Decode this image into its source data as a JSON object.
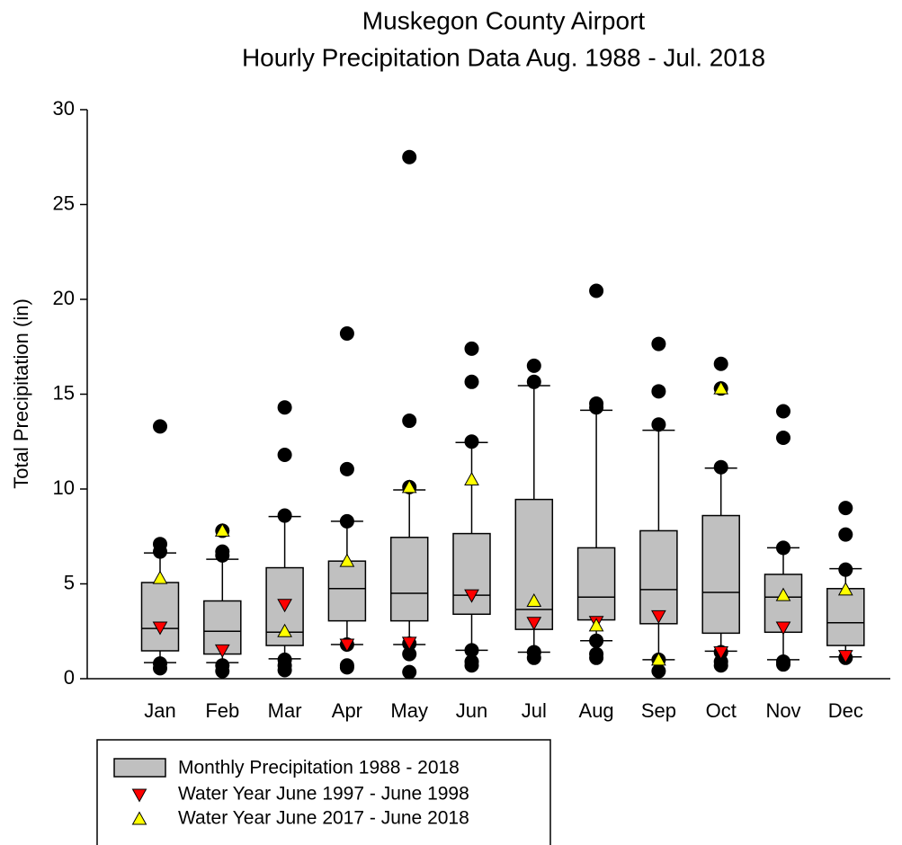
{
  "chart_data": {
    "type": "box",
    "title": "Muskegon County Airport",
    "subtitle": "Hourly Precipitation Data Aug. 1988 - Jul. 2018",
    "y_label": "Total Precipitation (in)",
    "categories": [
      "Jan",
      "Feb",
      "Mar",
      "Apr",
      "May",
      "Jun",
      "Jul",
      "Aug",
      "Sep",
      "Oct",
      "Nov",
      "Dec"
    ],
    "ylim": [
      0,
      30
    ],
    "yticks": [
      0,
      5,
      10,
      15,
      20,
      25,
      30
    ],
    "box_series": {
      "name": "Monthly Precipitation 1988 - 2018",
      "color": "#c0c0c0",
      "low": [
        0.85,
        0.85,
        1.05,
        1.8,
        1.8,
        1.5,
        1.4,
        2.0,
        1.0,
        1.45,
        1.0,
        1.15
      ],
      "q1": [
        1.47,
        1.3,
        1.75,
        3.05,
        3.05,
        3.4,
        2.6,
        3.1,
        2.9,
        2.4,
        2.45,
        1.75
      ],
      "median": [
        2.65,
        2.5,
        2.45,
        4.75,
        4.5,
        4.4,
        3.65,
        4.3,
        4.7,
        4.55,
        4.3,
        2.95
      ],
      "q3": [
        5.07,
        4.1,
        5.85,
        6.2,
        7.45,
        7.65,
        9.45,
        6.9,
        7.8,
        8.6,
        5.5,
        4.75
      ],
      "high": [
        6.63,
        6.3,
        8.55,
        8.3,
        9.95,
        12.45,
        15.45,
        14.15,
        13.1,
        11.1,
        6.9,
        5.8
      ],
      "outliers": [
        [
          13.3,
          7.1,
          6.7,
          0.8,
          0.55
        ],
        [
          7.8,
          6.7,
          6.5,
          0.7,
          0.4
        ],
        [
          14.3,
          11.8,
          8.6,
          1.0,
          0.7,
          0.45
        ],
        [
          18.2,
          11.05,
          8.3,
          1.8,
          0.7,
          0.6
        ],
        [
          27.5,
          13.6,
          10.1,
          1.85,
          1.3,
          0.35
        ],
        [
          17.4,
          15.65,
          12.5,
          1.5,
          0.9,
          0.7
        ],
        [
          16.5,
          15.65,
          1.4,
          1.1
        ],
        [
          20.45,
          14.5,
          14.3,
          2.0,
          1.3,
          1.1
        ],
        [
          17.65,
          15.15,
          13.4,
          1.0,
          0.4
        ],
        [
          16.6,
          15.3,
          11.15,
          1.4,
          0.9,
          0.7
        ],
        [
          14.1,
          12.7,
          6.9,
          0.9,
          0.75
        ],
        [
          9.0,
          7.6,
          5.75,
          1.1
        ]
      ]
    },
    "series": [
      {
        "name": "Water Year June 1997 - June 1998",
        "color": "#ff0000",
        "marker": "triangle-down",
        "values": [
          2.7,
          1.5,
          3.9,
          1.8,
          1.9,
          4.4,
          2.95,
          3.0,
          3.3,
          1.4,
          2.7,
          1.2
        ]
      },
      {
        "name": "Water Year June 2017 - June 2018",
        "color": "#ffff00",
        "marker": "triangle-up",
        "values": [
          5.3,
          7.8,
          2.5,
          6.2,
          10.1,
          10.5,
          4.1,
          2.8,
          1.0,
          15.3,
          4.4,
          4.7
        ]
      }
    ]
  }
}
